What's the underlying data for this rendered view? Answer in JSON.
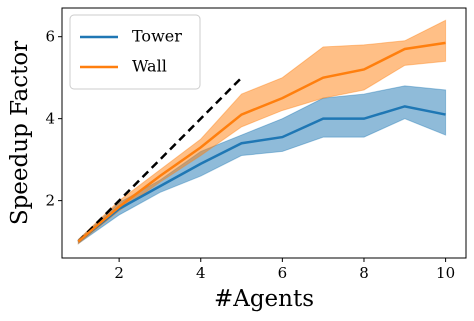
{
  "chart_data": {
    "type": "line",
    "x_label": "#Agents",
    "y_label": "Speedup Factor",
    "x": [
      1,
      2,
      3,
      4,
      5,
      6,
      7,
      8,
      9,
      10
    ],
    "series": [
      {
        "name": "Tower",
        "color": "#1f77b4",
        "values": [
          1,
          1.8,
          2.35,
          2.9,
          3.4,
          3.55,
          4.0,
          4.0,
          4.3,
          4.1
        ],
        "lower": [
          0.95,
          1.65,
          2.2,
          2.6,
          3.1,
          3.2,
          3.55,
          3.55,
          4.0,
          3.6
        ],
        "upper": [
          1.05,
          1.95,
          2.5,
          3.2,
          3.6,
          4.0,
          4.5,
          4.6,
          4.8,
          4.7
        ]
      },
      {
        "name": "Wall",
        "color": "#ff7f0e",
        "values": [
          1,
          1.85,
          2.6,
          3.3,
          4.1,
          4.5,
          5.0,
          5.2,
          5.7,
          5.85
        ],
        "lower": [
          0.95,
          1.75,
          2.45,
          3.1,
          3.8,
          4.2,
          4.5,
          4.7,
          5.3,
          5.4
        ],
        "upper": [
          1.05,
          2.0,
          2.75,
          3.5,
          4.6,
          5.0,
          5.75,
          5.8,
          5.9,
          6.4
        ]
      }
    ],
    "diagonal": {
      "x": [
        1,
        5
      ],
      "values": [
        1,
        5
      ],
      "color": "#000000",
      "dashed": true
    },
    "xlim": [
      0.6,
      10.5
    ],
    "ylim": [
      0.6,
      6.7
    ],
    "xticks": [
      2,
      4,
      6,
      8,
      10
    ],
    "yticks": [
      2,
      4,
      6
    ],
    "grid": false,
    "legend": "upper-left"
  }
}
